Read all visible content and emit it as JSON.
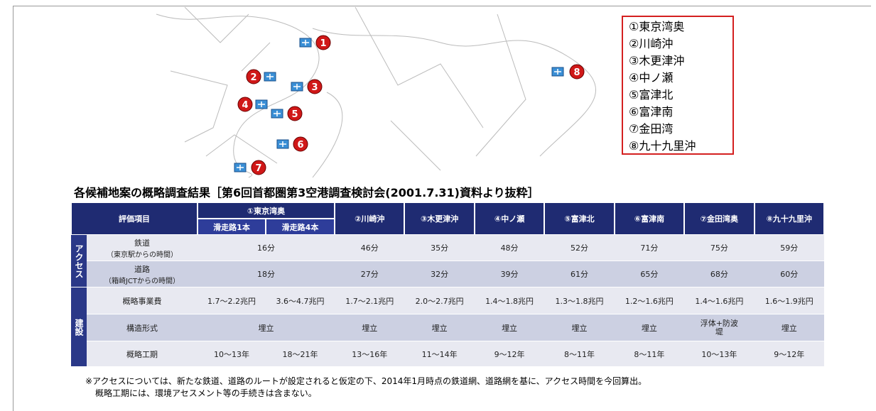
{
  "map": {
    "markers": [
      "1",
      "2",
      "3",
      "4",
      "5",
      "6",
      "7",
      "8"
    ]
  },
  "legend": {
    "items": [
      "①東京湾奥",
      "②川崎沖",
      "③木更津沖",
      "④中ノ瀬",
      "⑤富津北",
      "⑥富津南",
      "⑦金田湾",
      "⑧九十九里沖"
    ]
  },
  "title": "各候補地案の概略調査結果［第6回首都圏第3空港調査検討会(2001.7.31)資料より抜粋］",
  "table": {
    "header": {
      "item": "評価項目",
      "group": "①東京湾奥",
      "sub": [
        "滑走路1本",
        "滑走路4本"
      ],
      "columns": [
        "②川崎沖",
        "③木更津沖",
        "④中ノ瀬",
        "⑤富津北",
        "⑥富津南",
        "⑦金田湾奥",
        "⑧九十九里沖"
      ]
    },
    "groups": [
      "アクセス",
      "建設"
    ],
    "rows": [
      {
        "label": "鉄道",
        "sublabel": "（東京駅からの時間）",
        "cells": [
          "16分",
          "46分",
          "35分",
          "48分",
          "52分",
          "71分",
          "75分",
          "59分"
        ]
      },
      {
        "label": "道路",
        "sublabel": "（箱崎JCTからの時間）",
        "cells": [
          "18分",
          "27分",
          "32分",
          "39分",
          "61分",
          "65分",
          "68分",
          "60分"
        ]
      },
      {
        "label": "概略事業費",
        "cells": [
          "1.7～2.2兆円",
          "3.6～4.7兆円",
          "1.7～2.1兆円",
          "2.0～2.7兆円",
          "1.4～1.8兆円",
          "1.3～1.8兆円",
          "1.2～1.6兆円",
          "1.4～1.6兆円",
          "1.6～1.9兆円"
        ]
      },
      {
        "label": "構造形式",
        "cells": [
          "埋立",
          "埋立",
          "埋立",
          "埋立",
          "埋立",
          "埋立",
          "浮体+防波堤",
          "埋立"
        ]
      },
      {
        "label": "概略工期",
        "cells": [
          "10～13年",
          "18～21年",
          "13～16年",
          "11～14年",
          "9～12年",
          "8～11年",
          "8～11年",
          "10～13年",
          "9～12年"
        ]
      }
    ]
  },
  "footnotes": [
    "※アクセスについては、新たな鉄道、道路のルートが設定されると仮定の下、2014年1月時点の鉄道網、道路網を基に、アクセス時間を今回算出。",
    "概略工期には、環境アセスメント等の手続きは含まない。"
  ]
}
